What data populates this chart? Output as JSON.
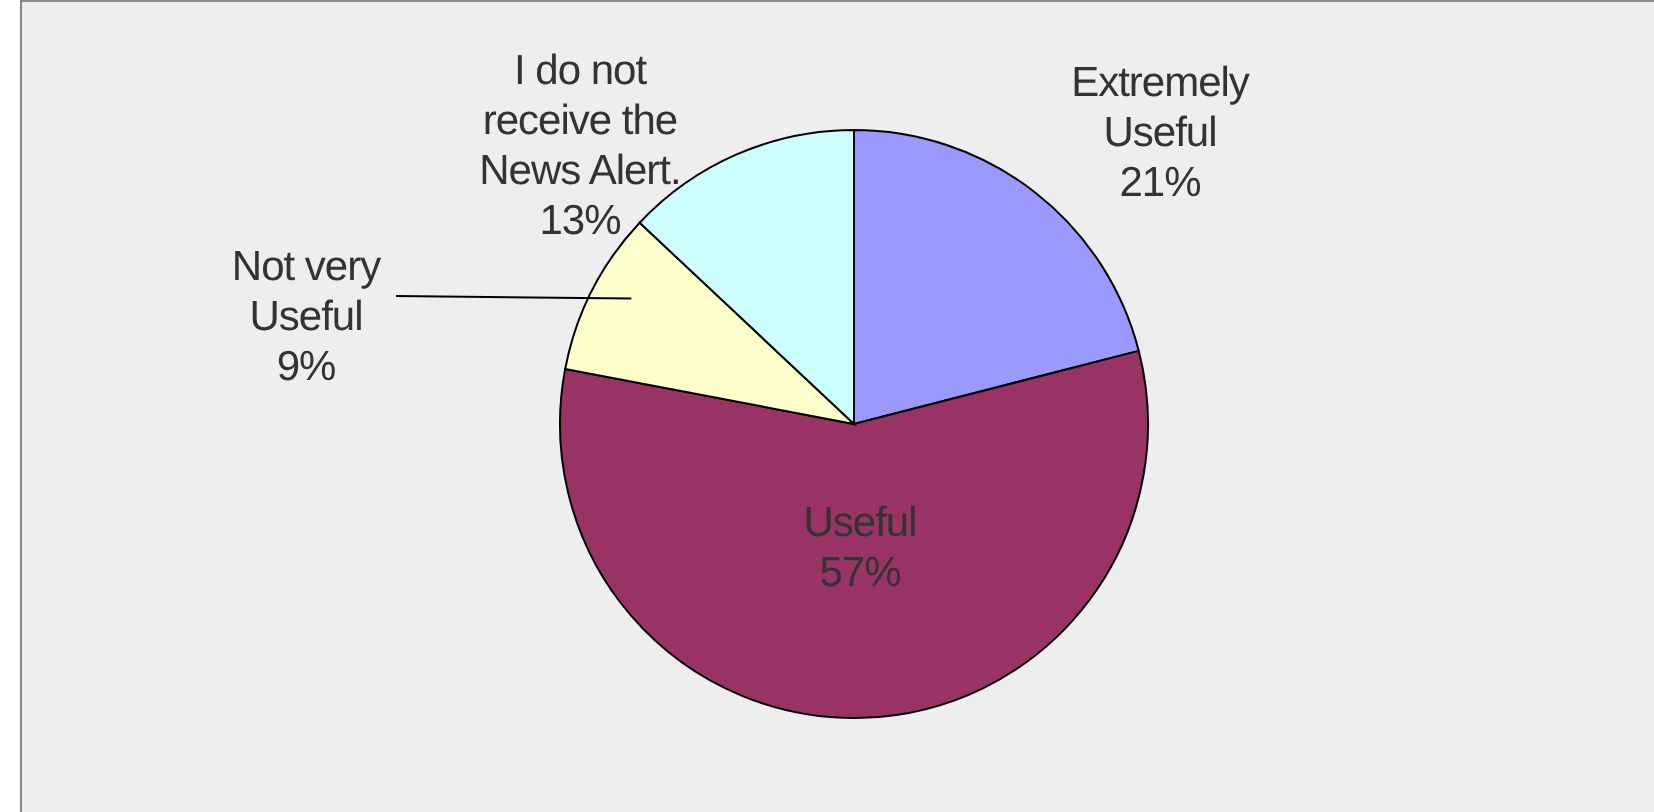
{
  "chart_data": {
    "type": "pie",
    "categories": [
      "Extremely Useful",
      "Useful",
      "Not very Useful",
      "I do not receive the News Alert."
    ],
    "values": [
      21,
      57,
      9,
      13
    ],
    "colors": [
      "#9999ff",
      "#993366",
      "#ffffcc",
      "#ccffff"
    ],
    "value_labels": [
      "21%",
      "57%",
      "9%",
      "13%"
    ],
    "legend": false
  }
}
